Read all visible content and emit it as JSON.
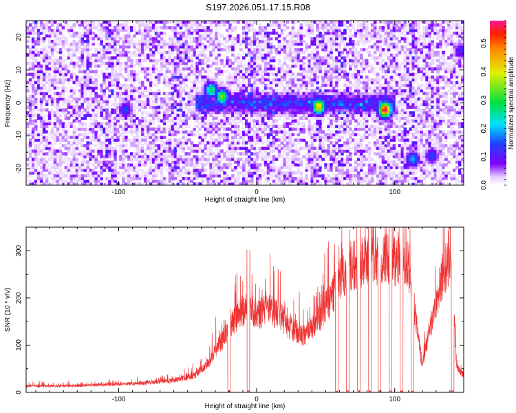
{
  "title": "S197.2026.051.17.15.R08",
  "chart_data": [
    {
      "type": "heatmap",
      "xlabel": "Height of straight line (km)",
      "ylabel": "Frequency (Hz)",
      "xlim": [
        -167,
        150
      ],
      "ylim": [
        -25,
        25
      ],
      "xticks": [
        -100,
        0,
        100
      ],
      "yticks": [
        -20,
        -10,
        0,
        10,
        20
      ],
      "colorbar": {
        "label": "Normalized spectral amplitude",
        "range": [
          0,
          0.58
        ],
        "ticks": [
          0.0,
          0.1,
          0.2,
          0.3,
          0.4,
          0.5
        ]
      },
      "signal_track_hz": 0,
      "features": [
        {
          "x": -33,
          "y": 4,
          "amplitude": 0.3
        },
        {
          "x": -25,
          "y": 2,
          "amplitude": 0.35
        },
        {
          "x": -95,
          "y": -2,
          "amplitude": 0.15
        },
        {
          "x": 45,
          "y": -1,
          "amplitude": 0.45
        },
        {
          "x": 93,
          "y": -2,
          "amplitude": 0.58
        },
        {
          "x": 113,
          "y": -17,
          "amplitude": 0.2
        },
        {
          "x": 127,
          "y": -16,
          "amplitude": 0.15
        },
        {
          "x": 148,
          "y": 16,
          "amplitude": 0.12
        }
      ]
    },
    {
      "type": "line",
      "xlabel": "Height of straight line (km)",
      "ylabel": "SNR (10 * v/v)",
      "xlim": [
        -167,
        150
      ],
      "ylim": [
        0,
        350
      ],
      "xticks": [
        -100,
        0,
        100
      ],
      "yticks": [
        0,
        100,
        200,
        300
      ],
      "color": "#ee3333",
      "envelope": {
        "x": [
          -167,
          -140,
          -110,
          -80,
          -60,
          -45,
          -35,
          -22,
          -12,
          -5,
          0,
          5,
          15,
          25,
          35,
          45,
          55,
          60,
          70,
          80,
          95,
          110,
          120,
          125,
          130,
          135,
          140,
          145,
          150
        ],
        "y": [
          15,
          15,
          18,
          22,
          28,
          40,
          70,
          140,
          190,
          200,
          180,
          195,
          190,
          150,
          135,
          170,
          230,
          270,
          300,
          310,
          315,
          300,
          60,
          150,
          200,
          280,
          320,
          60,
          40
        ]
      },
      "dropouts": [
        {
          "from": -21,
          "to": -19
        },
        {
          "from": -7,
          "to": -5
        },
        {
          "from": 57,
          "to": 59
        },
        {
          "from": 65,
          "to": 67
        },
        {
          "from": 73,
          "to": 75
        },
        {
          "from": 81,
          "to": 83
        },
        {
          "from": 88,
          "to": 90
        },
        {
          "from": 96,
          "to": 98
        },
        {
          "from": 104,
          "to": 106
        },
        {
          "from": 112,
          "to": 114
        },
        {
          "from": 141,
          "to": 143
        }
      ]
    }
  ]
}
